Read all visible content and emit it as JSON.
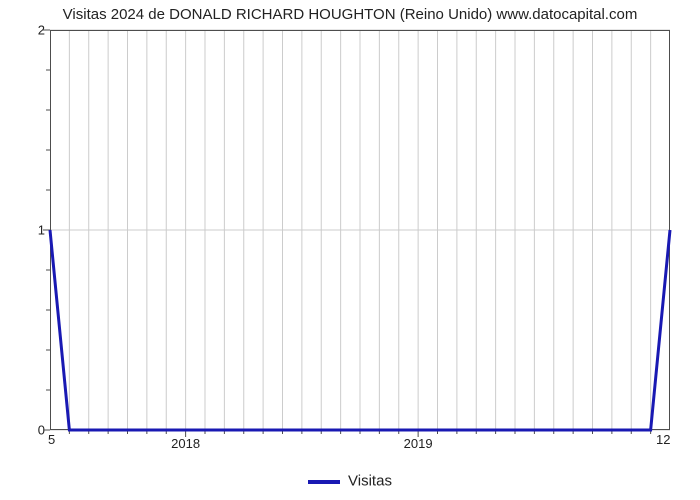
{
  "chart": {
    "type": "line",
    "title": "Visitas 2024 de DONALD RICHARD HOUGHTON (Reino Unido) www.datocapital.com",
    "title_fontsize": 15,
    "background_color": "#ffffff",
    "plot_border_color": "#4d4d4d",
    "grid_color": "#cccccc",
    "axis_tick_color": "#4d4d4d",
    "y": {
      "lim": [
        0,
        2
      ],
      "major_ticks": [
        0,
        1,
        2
      ],
      "minor_ticks": [
        0.2,
        0.4,
        0.6,
        0.8,
        1.2,
        1.4,
        1.6,
        1.8
      ],
      "label_fontsize": 13
    },
    "x": {
      "lim": [
        2017.4167,
        2020.0833
      ],
      "major_ticks": [
        2018,
        2019
      ],
      "major_labels": [
        "2018",
        "2019"
      ],
      "minor_ticks": [
        2017.5,
        2017.5833,
        2017.6667,
        2017.75,
        2017.8333,
        2017.9167,
        2018.0833,
        2018.1667,
        2018.25,
        2018.3333,
        2018.4167,
        2018.5,
        2018.5833,
        2018.6667,
        2018.75,
        2018.8333,
        2018.9167,
        2019.0833,
        2019.1667,
        2019.25,
        2019.3333,
        2019.4167,
        2019.5,
        2019.5833,
        2019.6667,
        2019.75,
        2019.8333,
        2019.9167,
        2020.0
      ],
      "left_corner_label": "5",
      "right_corner_label": "12",
      "label_fontsize": 13
    },
    "series": [
      {
        "name": "Visitas",
        "color": "#1919b3",
        "line_width": 3,
        "x": [
          2017.4167,
          2017.5,
          2020.0,
          2020.0833
        ],
        "y": [
          1,
          0,
          0,
          1
        ]
      }
    ],
    "legend": {
      "position": "bottom-center",
      "label_fontsize": 15
    }
  }
}
